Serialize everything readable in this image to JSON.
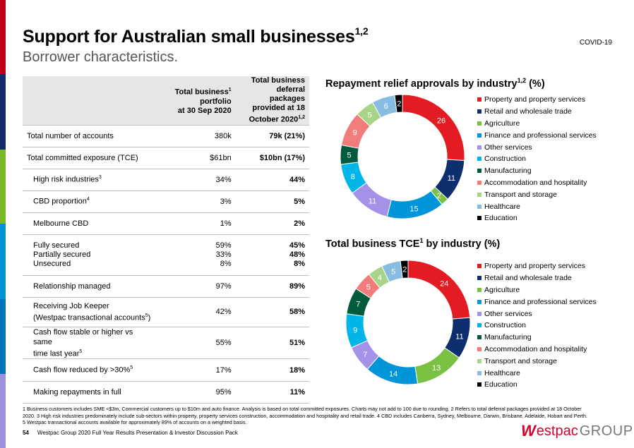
{
  "header": {
    "title": "Support for Australian small businesses",
    "title_sup": "1,2",
    "subtitle": "Borrower characteristics.",
    "tag": "COVID-19"
  },
  "brand_colors": [
    "#c00018",
    "#142b6f",
    "#7ab929",
    "#0094d4",
    "#a08fe0",
    "#0073bc"
  ],
  "table": {
    "col1_l1": "Total business",
    "col1_sup": "1",
    "col1_l2": "portfolio",
    "col1_l3": "at 30 Sep 2020",
    "col2_l1": "Total business",
    "col2_l2": "deferral packages",
    "col2_l3": "provided at 18",
    "col2_l4": "October 2020",
    "col2_sup": "1,2",
    "rows": [
      {
        "label": "Total number of accounts",
        "a": "380k",
        "b": "79k (21%)"
      },
      {
        "label": "Total committed exposure (TCE)",
        "a": "$61bn",
        "b": "$10bn (17%)"
      },
      {
        "label": "High risk industries",
        "sup": "3",
        "a": "34%",
        "b": "44%"
      },
      {
        "label": "CBD proportion",
        "sup": "4",
        "a": "3%",
        "b": "5%"
      },
      {
        "label": "Melbourne CBD",
        "a": "1%",
        "b": "2%"
      },
      {
        "l1": "Fully secured",
        "l2": "Partially secured",
        "l3": "Unsecured",
        "a1": "59%",
        "a2": "33%",
        "a3": "8%",
        "b1": "45%",
        "b2": "48%",
        "b3": "8%"
      },
      {
        "label": "Relationship managed",
        "a": "97%",
        "b": "89%"
      },
      {
        "l1": "Receiving Job Keeper",
        "l2": "(Westpac transactional accounts",
        "sup": "5",
        "l2_end": ")",
        "a": "42%",
        "b": "58%"
      },
      {
        "l1": "Cash flow stable or higher vs same",
        "l2": "time last year",
        "sup": "5",
        "a": "55%",
        "b": "51%"
      },
      {
        "label": "Cash flow reduced by >30%",
        "sup": "5",
        "a": "17%",
        "b": "18%"
      },
      {
        "label": "Making repayments in full",
        "a": "95%",
        "b": "11%"
      }
    ]
  },
  "legend": [
    "Property and property services",
    "Retail and wholesale trade",
    "Agriculture",
    "Finance and professional services",
    "Other services",
    "Construction",
    "Manufacturing",
    "Accommodation and hospitality",
    "Transport and storage",
    "Healthcare",
    "Education"
  ],
  "chart_data": [
    {
      "type": "pie",
      "title": "Repayment relief approvals by industry",
      "title_sup": "1,2",
      "title_suffix": " (%)",
      "categories": [
        "Property and property services",
        "Retail and wholesale trade",
        "Agriculture",
        "Finance and professional services",
        "Other services",
        "Construction",
        "Manufacturing",
        "Accommodation and hospitality",
        "Transport and storage",
        "Healthcare",
        "Education"
      ],
      "values": [
        26,
        11,
        2,
        15,
        11,
        8,
        5,
        9,
        5,
        6,
        2
      ],
      "colors": [
        "#e31b23",
        "#0d2f6e",
        "#7ac143",
        "#0094d8",
        "#a491e8",
        "#00b5e8",
        "#005a3c",
        "#f07c7c",
        "#a8d48a",
        "#88bce0",
        "#000000"
      ]
    },
    {
      "type": "pie",
      "title": "Total business TCE",
      "title_sup": "1",
      "title_suffix": " by industry (%)",
      "categories": [
        "Property and property services",
        "Retail and wholesale trade",
        "Agriculture",
        "Finance and professional services",
        "Other services",
        "Construction",
        "Manufacturing",
        "Accommodation and hospitality",
        "Transport and storage",
        "Healthcare",
        "Education"
      ],
      "values": [
        24,
        11,
        13,
        14,
        7,
        9,
        7,
        5,
        4,
        5,
        2
      ],
      "colors": [
        "#e31b23",
        "#0d2f6e",
        "#7ac143",
        "#0094d8",
        "#a491e8",
        "#00b5e8",
        "#005a3c",
        "#f07c7c",
        "#a8d48a",
        "#88bce0",
        "#000000"
      ]
    }
  ],
  "footnote": {
    "line1": "1 Business customers includes SME <$3m, Commercial customers up to $10m and auto finance. Analysis is based on total committed exposures. Charts may not add to 100 due to rounding.  2 Refers to total deferral packages provided at 18 October",
    "line2": "2020. 3 High risk industries predominately include sub-sectors within property, property services construction, accommodation and hospitality and retail trade. 4 CBD includes Canberra, Sydney, Melbourne, Darwin, Brisbane, Adelaide, Hobart and Perth.",
    "line3": "5 Westpac transactional accounts available for approximately 89% of accounts on a weighted basis."
  },
  "footer": {
    "page": "54",
    "text": "Westpac Group 2020 Full Year Results Presentation & Investor Discussion Pack",
    "logo_mark": "W",
    "logo_word": "estpac",
    "logo_group": "GROUP"
  }
}
